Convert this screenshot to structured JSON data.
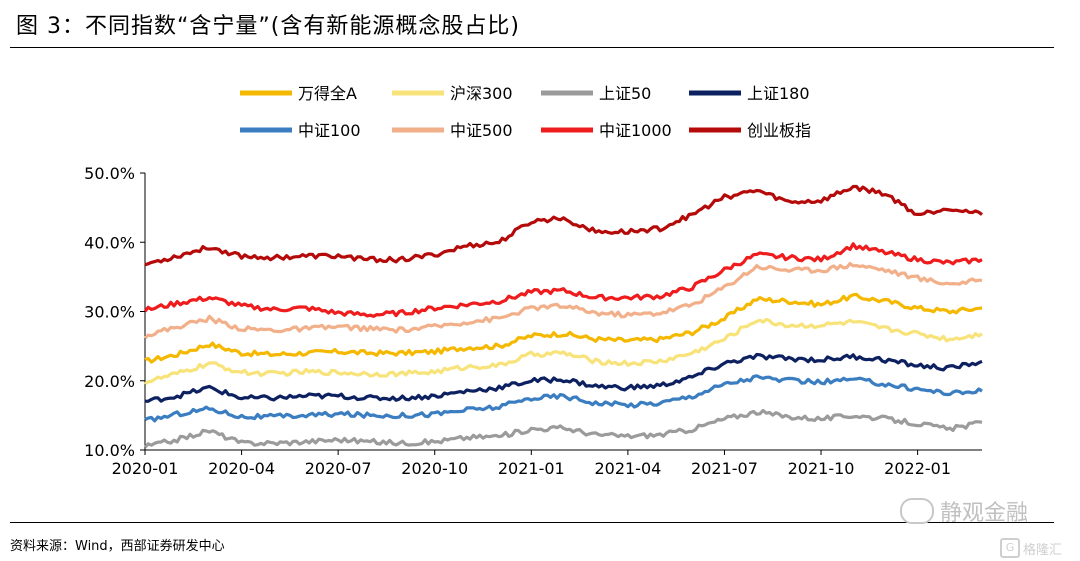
{
  "title": "图 3：不同指数“含宁量”(含有新能源概念股占比)",
  "source": "资料来源：Wind，西部证券研发中心",
  "watermark": "静观金融",
  "watermark2": "格隆汇",
  "chart_data": {
    "type": "line",
    "title": "",
    "xlabel": "",
    "ylabel": "",
    "ylim": [
      10.0,
      50.0
    ],
    "yticks": [
      "10.0%",
      "20.0%",
      "30.0%",
      "40.0%",
      "50.0%"
    ],
    "xticks": [
      "2020-01",
      "2020-04",
      "2020-07",
      "2020-10",
      "2021-01",
      "2021-04",
      "2021-07",
      "2021-10",
      "2022-01"
    ],
    "x": [
      "2020-01",
      "2020-02",
      "2020-03",
      "2020-04",
      "2020-05",
      "2020-06",
      "2020-07",
      "2020-08",
      "2020-09",
      "2020-10",
      "2020-11",
      "2020-12",
      "2021-01",
      "2021-02",
      "2021-03",
      "2021-04",
      "2021-05",
      "2021-06",
      "2021-07",
      "2021-08",
      "2021-09",
      "2021-10",
      "2021-11",
      "2021-12",
      "2022-01",
      "2022-02",
      "2022-03"
    ],
    "legend_position": "top",
    "series": [
      {
        "name": "万得全A",
        "color": "#f5b800",
        "values": [
          22.8,
          23.8,
          25.3,
          24.0,
          23.8,
          24.0,
          24.2,
          24.0,
          24.0,
          24.2,
          24.8,
          25.0,
          26.5,
          26.8,
          26.0,
          25.8,
          26.0,
          27.0,
          29.0,
          31.8,
          31.5,
          31.0,
          32.2,
          31.5,
          30.5,
          30.0,
          30.5
        ]
      },
      {
        "name": "沪深300",
        "color": "#f7e37a",
        "values": [
          19.8,
          21.0,
          22.5,
          21.2,
          21.0,
          21.3,
          21.2,
          21.0,
          21.0,
          21.3,
          22.0,
          22.2,
          23.8,
          24.0,
          22.8,
          22.5,
          22.8,
          24.0,
          26.0,
          28.8,
          28.0,
          28.0,
          28.5,
          27.5,
          26.8,
          26.0,
          26.8
        ]
      },
      {
        "name": "上证50",
        "color": "#9b9b9b",
        "values": [
          10.5,
          11.5,
          12.8,
          11.0,
          11.0,
          11.2,
          11.5,
          11.2,
          11.0,
          11.2,
          11.8,
          12.0,
          13.0,
          13.2,
          12.2,
          12.0,
          12.2,
          13.0,
          14.5,
          15.5,
          14.8,
          14.5,
          15.0,
          14.5,
          13.8,
          13.0,
          14.0
        ]
      },
      {
        "name": "上证180",
        "color": "#0d2161",
        "values": [
          17.0,
          17.8,
          19.0,
          17.5,
          17.5,
          17.8,
          17.8,
          17.5,
          17.5,
          17.8,
          18.5,
          19.0,
          20.0,
          20.2,
          19.2,
          19.0,
          19.3,
          20.5,
          22.5,
          23.5,
          23.2,
          23.0,
          23.5,
          23.0,
          22.2,
          21.8,
          22.8
        ]
      },
      {
        "name": "中证100",
        "color": "#3a7dc0",
        "values": [
          14.2,
          15.2,
          16.0,
          14.8,
          14.8,
          15.0,
          15.2,
          15.0,
          15.0,
          15.2,
          15.8,
          16.2,
          17.5,
          17.8,
          16.8,
          16.5,
          16.8,
          17.8,
          19.5,
          20.5,
          20.0,
          19.8,
          20.2,
          19.5,
          18.8,
          18.2,
          18.5
        ]
      },
      {
        "name": "中证500",
        "color": "#f2b08a",
        "values": [
          26.5,
          27.8,
          29.0,
          27.5,
          27.3,
          27.5,
          27.8,
          27.5,
          27.3,
          27.8,
          28.5,
          29.0,
          30.5,
          30.8,
          29.8,
          29.5,
          29.8,
          31.0,
          33.5,
          36.5,
          36.0,
          36.0,
          36.8,
          36.0,
          34.8,
          34.0,
          34.5
        ]
      },
      {
        "name": "中证1000",
        "color": "#ee1c1c",
        "values": [
          30.2,
          31.2,
          32.0,
          30.8,
          30.3,
          30.5,
          29.8,
          29.5,
          29.8,
          30.5,
          31.0,
          31.5,
          32.8,
          33.0,
          32.0,
          32.0,
          32.2,
          33.5,
          36.0,
          38.2,
          37.8,
          37.5,
          39.5,
          38.5,
          37.5,
          37.0,
          37.5
        ]
      },
      {
        "name": "创业板指",
        "color": "#b50a0a",
        "values": [
          36.8,
          38.0,
          39.3,
          38.0,
          37.8,
          38.0,
          38.0,
          37.5,
          37.5,
          38.2,
          39.5,
          40.0,
          43.0,
          43.5,
          41.5,
          41.5,
          42.0,
          44.0,
          46.5,
          47.5,
          45.8,
          46.0,
          48.0,
          47.0,
          44.0,
          45.0,
          44.0
        ]
      }
    ]
  }
}
